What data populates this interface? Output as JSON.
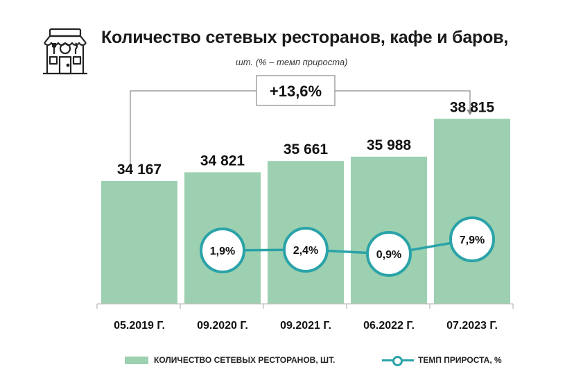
{
  "title": "Количество сетевых ресторанов, кафе и баров,",
  "subtitle": "шт. (% – темп прироста)",
  "total_growth_label": "+13,6%",
  "icon": "restaurant-storefront-icon",
  "colors": {
    "bar": "#9cd0b0",
    "line": "#2aa3a8",
    "axis": "#bdbdbd"
  },
  "chart_data": {
    "type": "bar",
    "categories": [
      "05.2019 Г.",
      "09.2020 Г.",
      "09.2021 Г.",
      "06.2022 Г.",
      "07.2023 Г."
    ],
    "series": [
      {
        "name": "КОЛИЧЕСТВО СЕТЕВЫХ РЕСТОРАНОВ, ШТ.",
        "type": "bar",
        "values": [
          34167,
          34821,
          35661,
          35988,
          38815
        ],
        "labels": [
          "34 167",
          "34 821",
          "35 661",
          "35 988",
          "38 815"
        ]
      },
      {
        "name": "ТЕМП ПРИРОСТА, %",
        "type": "line",
        "values": [
          null,
          1.9,
          2.4,
          0.9,
          7.9
        ],
        "labels": [
          "",
          "1,9%",
          "2,4%",
          "0,9%",
          "7,9%"
        ]
      }
    ],
    "legend_position": "bottom",
    "grid": false
  }
}
